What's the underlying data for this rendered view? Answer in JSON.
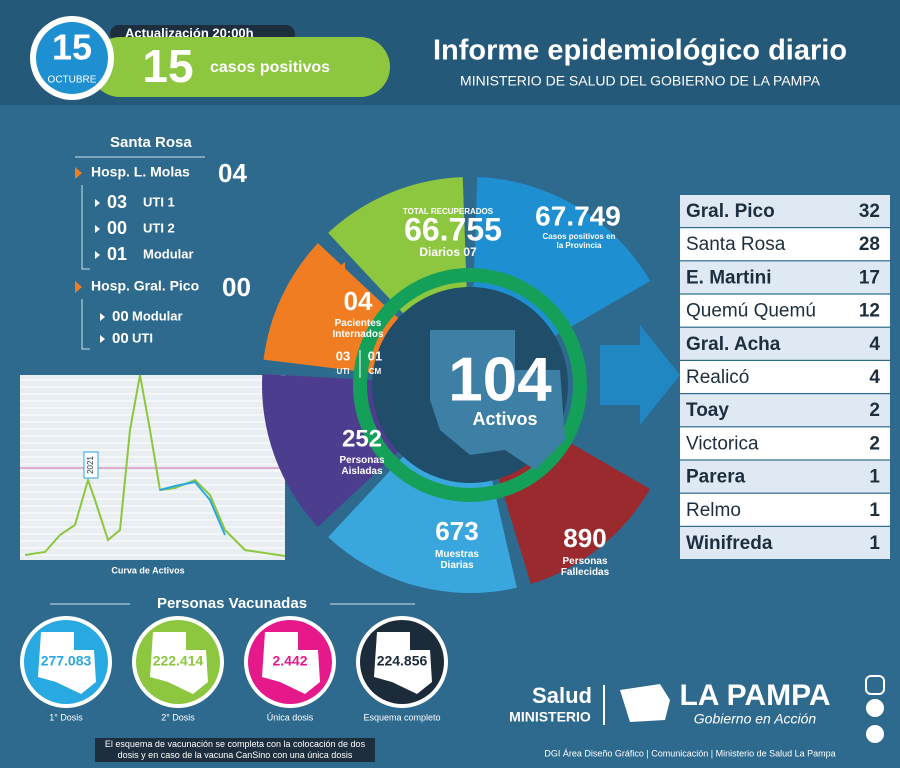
{
  "header": {
    "day": "15",
    "month": "OCTUBRE",
    "update": "Actualización 20:00h",
    "cases": "15",
    "cases_label": "casos positivos",
    "title": "Informe epidemiológico diario",
    "subtitle": "MINISTERIO DE SALUD DEL GOBIERNO DE LA PAMPA"
  },
  "hospitals": {
    "city": "Santa Rosa",
    "items": [
      {
        "name": "Hosp. L. Molas",
        "value": "04",
        "beds": [
          {
            "value": "03",
            "label": "UTI 1"
          },
          {
            "value": "00",
            "label": "UTI 2"
          },
          {
            "value": "01",
            "label": "Modular"
          }
        ]
      },
      {
        "name": "Hosp. Gral. Pico",
        "value": "00",
        "beds": [
          {
            "value": "00",
            "label": "Modular"
          },
          {
            "value": "00",
            "label": "UTI"
          }
        ]
      }
    ]
  },
  "curve": {
    "label": "2021",
    "caption": "Curva de Activos"
  },
  "wheel": {
    "recovered": {
      "label": "TOTAL RECUPERADOS",
      "value": "66.755",
      "daily": "Diarios 07"
    },
    "positives": {
      "value": "67.749",
      "label": "Casos positivos en la Provincia"
    },
    "hospitalized": {
      "value": "04",
      "label": "Pacientes Internados",
      "uti": "03",
      "uti_label": "UTI",
      "cm": "01",
      "cm_label": "CM"
    },
    "isolated": {
      "value": "252",
      "label": "Personas Aisladas"
    },
    "samples": {
      "value": "673",
      "label": "Muestras Diarias"
    },
    "deceased": {
      "value": "890",
      "label": "Personas Fallecidas"
    },
    "active": {
      "value": "104",
      "label": "Activos"
    }
  },
  "localities": [
    [
      "Gral. Pico",
      "32"
    ],
    [
      "Santa Rosa",
      "28"
    ],
    [
      "E. Martini",
      "17"
    ],
    [
      "Quemú Quemú",
      "12"
    ],
    [
      "Gral. Acha",
      "4"
    ],
    [
      "Realicó",
      "4"
    ],
    [
      "Toay",
      "2"
    ],
    [
      "Victorica",
      "2"
    ],
    [
      "Parera",
      "1"
    ],
    [
      "Relmo",
      "1"
    ],
    [
      "Winifreda",
      "1"
    ]
  ],
  "vaccines": {
    "title": "Personas Vacunadas",
    "items": [
      {
        "value": "277.083",
        "label": "1° Dosis",
        "color": "#29a9e1"
      },
      {
        "value": "222.414",
        "label": "2° Dosis",
        "color": "#8dc63f"
      },
      {
        "value": "2.442",
        "label": "Única dosis",
        "color": "#e6198a"
      },
      {
        "value": "224.856",
        "label": "Esquema completo",
        "color": "#1c2b3a"
      }
    ],
    "note": "El esquema de vacunación se completa con la colocación de dos dosis y en caso de la vacuna CanSino con una única dosis"
  },
  "footer": {
    "brand1": "Salud",
    "brand2": "MINISTERIO",
    "brand3": "LA PAMPA",
    "brand4": "Gobierno en Acción",
    "credits": "DGI Área Diseño Gráfico  |  Comunicación  |  Ministerio de Salud La Pampa"
  }
}
